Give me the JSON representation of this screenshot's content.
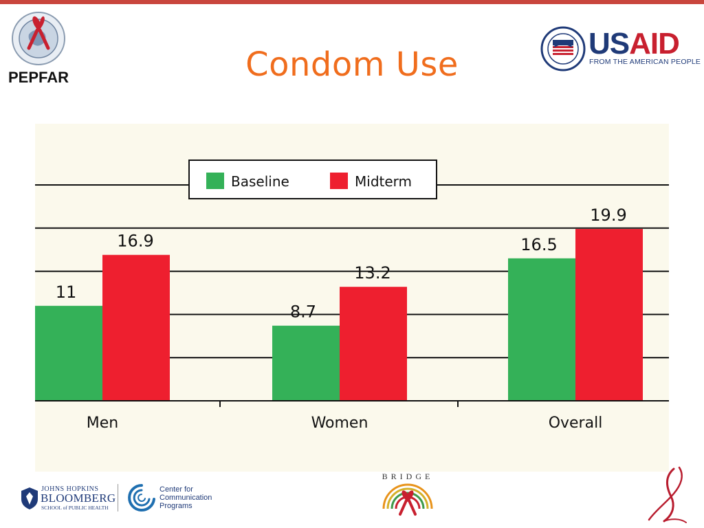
{
  "slide": {
    "title": "Condom Use"
  },
  "logos": {
    "pepfar": {
      "name": "PEPFAR",
      "icon": "globe-ribbon-icon"
    },
    "usaid": {
      "us": "US",
      "aid": "AID",
      "tagline": "FROM THE AMERICAN PEOPLE",
      "icon": "usaid-seal-icon"
    },
    "jhu": {
      "line1": "JOHNS HOPKINS",
      "line2": "BLOOMBERG",
      "line3": "SCHOOL of PUBLIC HEALTH",
      "icon": "jhu-shield-icon"
    },
    "ccp": {
      "line1": "Center for",
      "line2": "Communication",
      "line3": "Programs",
      "icon": "ccp-swirl-icon"
    },
    "bridge": {
      "name": "BRIDGE",
      "icon": "bridge-sunburst-ribbon-icon"
    },
    "ribbon": {
      "icon": "red-ribbon-icon"
    }
  },
  "colors": {
    "title": "#f06d1d",
    "baseline": "#34b158",
    "midterm": "#ee1f2f",
    "plot_bg": "#fbf9ec"
  },
  "chart_data": {
    "type": "bar",
    "categories": [
      "Men",
      "Women",
      "Overall"
    ],
    "series": [
      {
        "name": "Baseline",
        "values": [
          11,
          8.7,
          16.5
        ],
        "labels": [
          "11",
          "8.7",
          "16.5"
        ]
      },
      {
        "name": "Midterm",
        "values": [
          16.9,
          13.2,
          19.9
        ],
        "labels": [
          "16.9",
          "13.2",
          "19.9"
        ]
      }
    ],
    "ylim": [
      0,
      25
    ],
    "grid": true,
    "legend": "top-center",
    "title": "",
    "xlabel": "",
    "ylabel": ""
  }
}
